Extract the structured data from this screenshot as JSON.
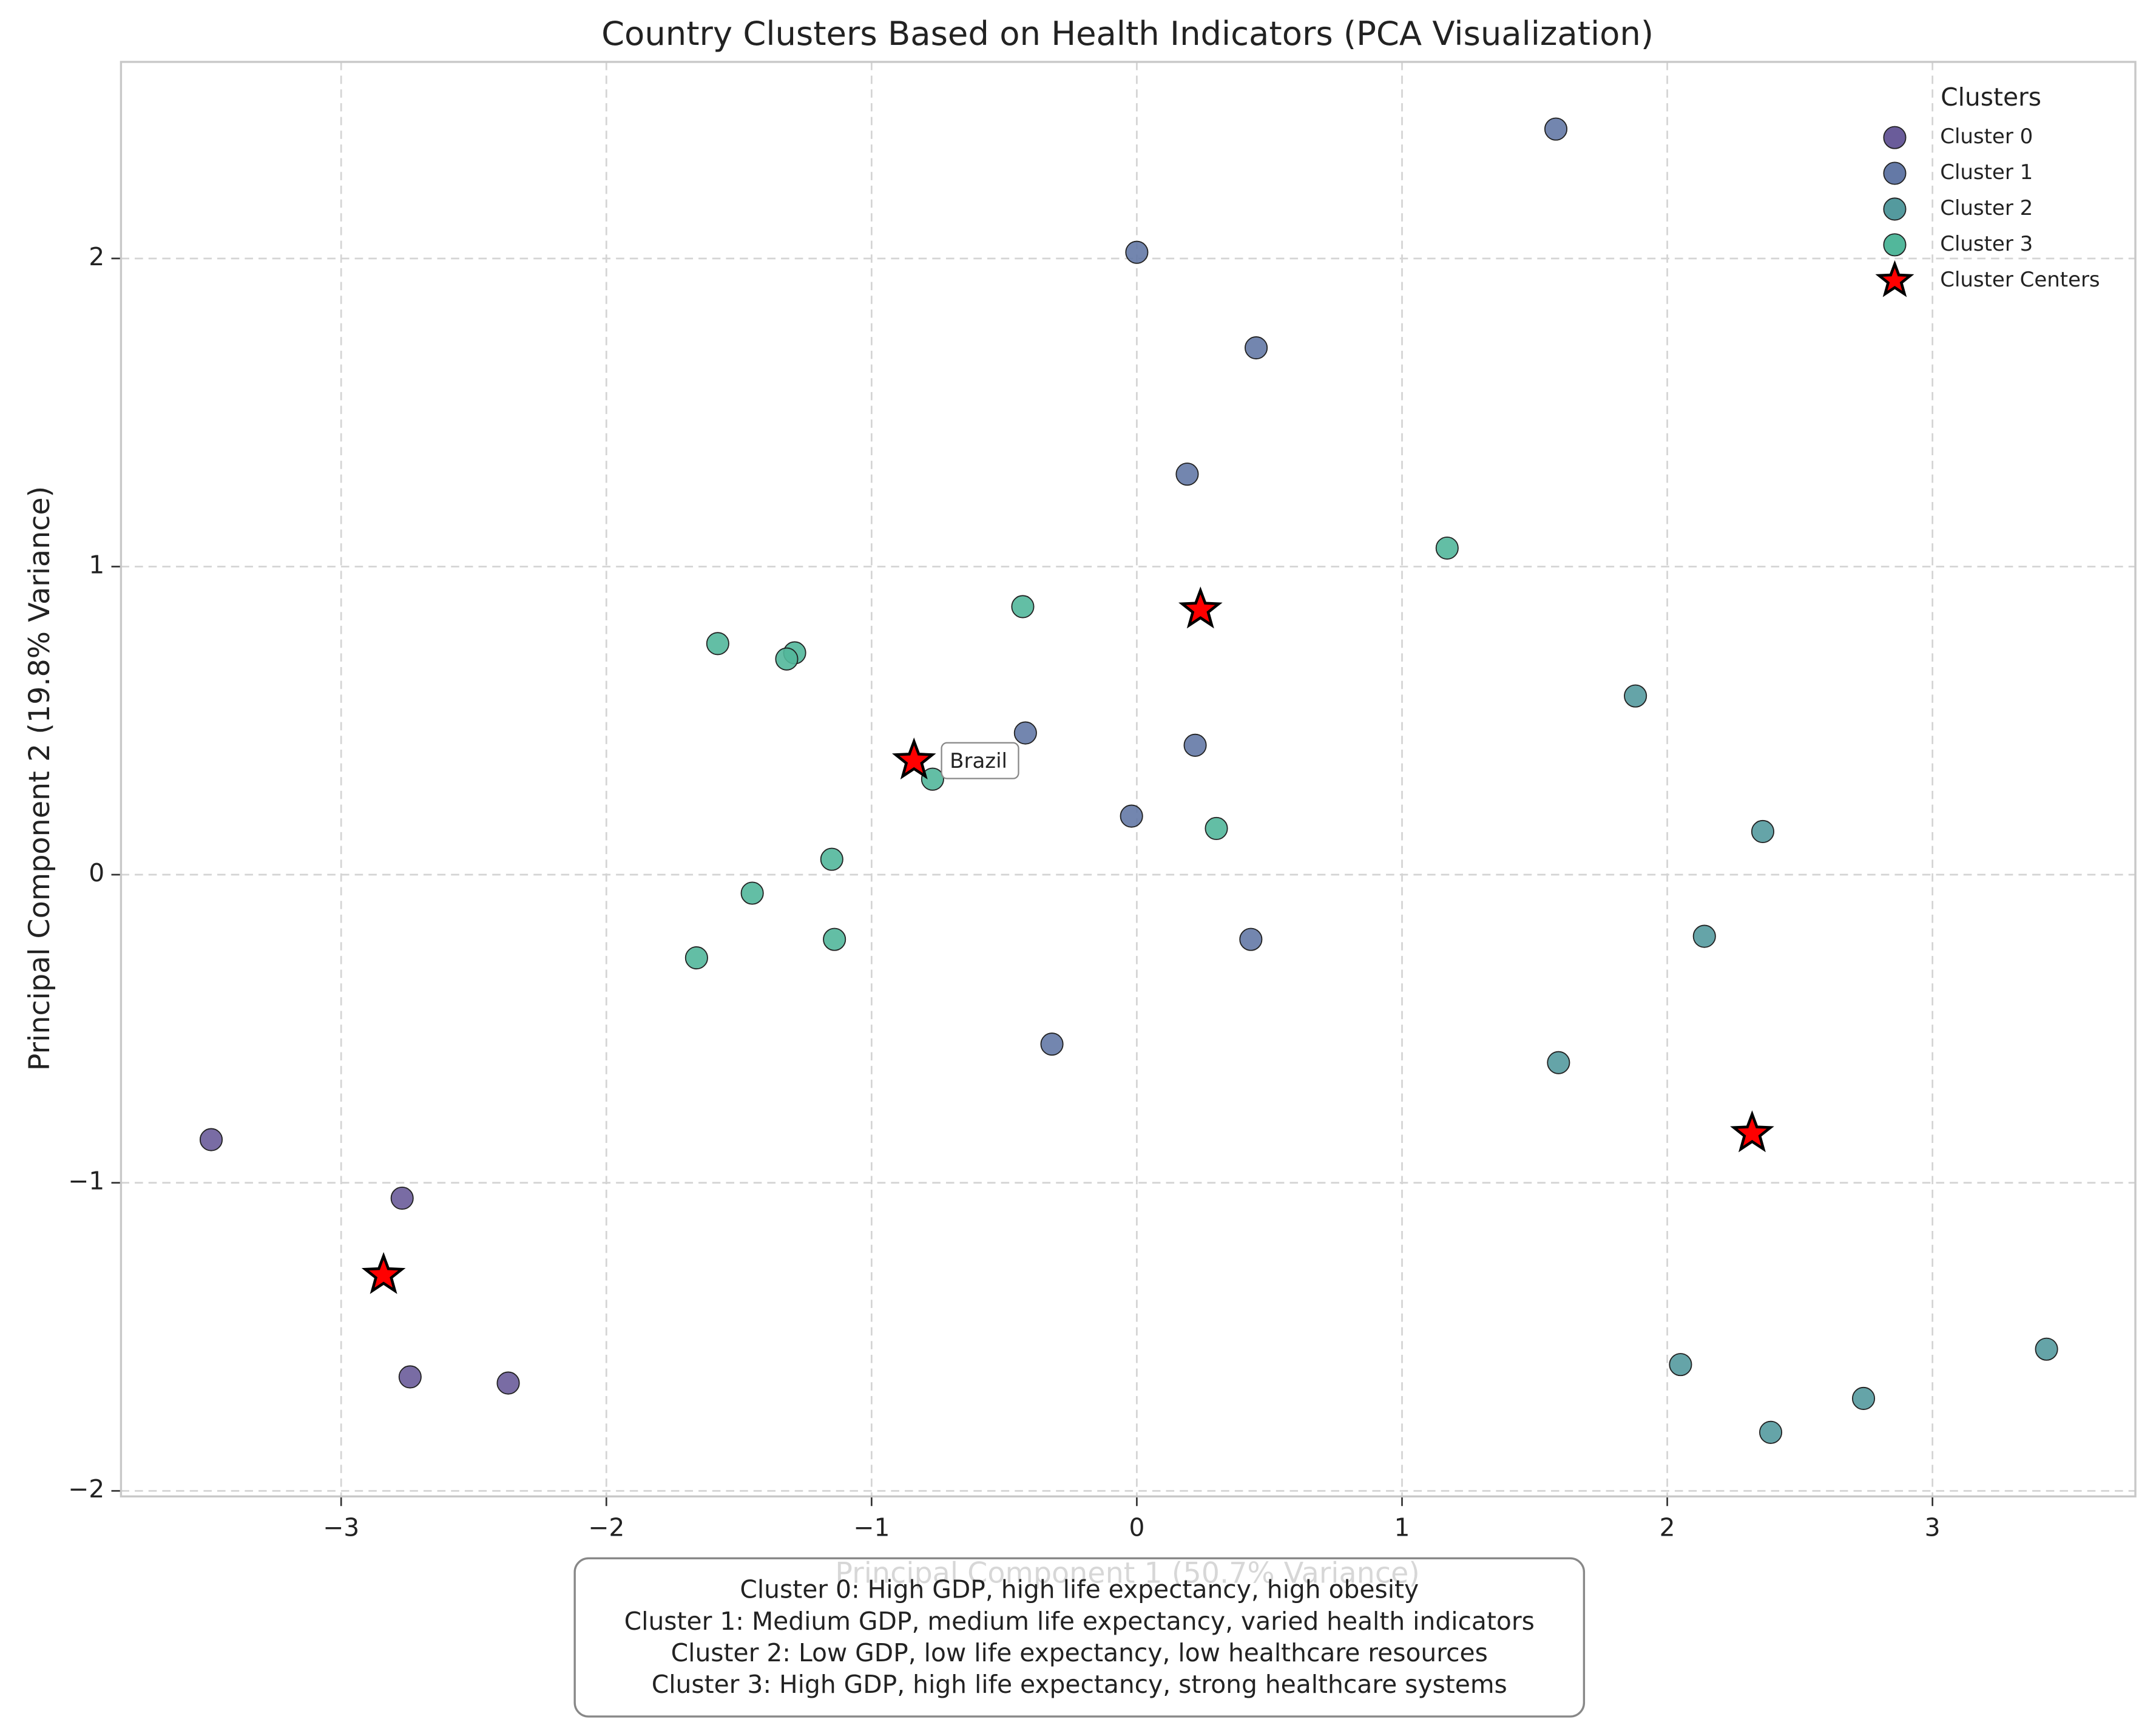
{
  "chart_data": {
    "type": "scatter",
    "title": "Country Clusters Based on Health Indicators (PCA Visualization)",
    "xlabel": "Principal Component 1 (50.7% Variance)",
    "ylabel": "Principal Component 2 (19.8% Variance)",
    "xlim": [
      -3.83,
      3.765
    ],
    "ylim": [
      -2.018,
      2.638
    ],
    "xticks": [
      {
        "value": -3,
        "label": "−3"
      },
      {
        "value": -2,
        "label": "−2"
      },
      {
        "value": -1,
        "label": "−1"
      },
      0,
      1,
      2,
      3
    ],
    "yticks": [
      {
        "value": -2,
        "label": "−2"
      },
      {
        "value": -1,
        "label": "−1"
      },
      0,
      1,
      2
    ],
    "grid": true,
    "legend_title": "Clusters",
    "legend_position": "upper right",
    "series": [
      {
        "name": "Cluster 0",
        "color": "#6a5c9a",
        "marker": "circle",
        "x": [
          -3.49,
          -2.77,
          -2.74,
          -2.37
        ],
        "y": [
          -0.86,
          -1.05,
          -1.63,
          -1.65
        ]
      },
      {
        "name": "Cluster 1",
        "color": "#6479a6",
        "marker": "circle",
        "x": [
          1.58,
          0.0,
          0.45,
          0.19,
          -0.42,
          0.22,
          -0.02,
          0.43,
          -0.32
        ],
        "y": [
          2.42,
          2.02,
          1.71,
          1.3,
          0.46,
          0.42,
          0.19,
          -0.21,
          -0.55
        ]
      },
      {
        "name": "Cluster 2",
        "color": "#549a9e",
        "marker": "circle",
        "x": [
          1.88,
          2.36,
          2.14,
          1.59,
          2.05,
          3.43,
          2.74,
          2.39
        ],
        "y": [
          0.58,
          0.14,
          -0.2,
          -0.61,
          -1.59,
          -1.54,
          -1.7,
          -1.81
        ]
      },
      {
        "name": "Cluster 3",
        "color": "#52b79b",
        "marker": "circle",
        "x": [
          1.17,
          -0.43,
          -1.58,
          -1.29,
          -1.32,
          -0.77,
          0.3,
          -1.15,
          -1.45,
          -1.14,
          -1.66
        ],
        "y": [
          1.06,
          0.87,
          0.75,
          0.72,
          0.7,
          0.31,
          0.15,
          0.05,
          -0.06,
          -0.21,
          -0.27
        ]
      },
      {
        "name": "Cluster Centers",
        "color": "#ff0000",
        "marker": "star",
        "x": [
          0.24,
          -0.84,
          2.32,
          -2.84
        ],
        "y": [
          0.86,
          0.37,
          -0.84,
          -1.3
        ]
      }
    ],
    "annotation": {
      "text": "Brazil",
      "x": -0.84,
      "y": 0.37
    },
    "notes": [
      "Cluster 0: High GDP, high life expectancy, high obesity",
      "Cluster 1: Medium GDP, medium life expectancy, varied health indicators",
      "Cluster 2: Low GDP, low life expectancy, low healthcare resources",
      "Cluster 3: High GDP, high life expectancy, strong healthcare systems"
    ]
  }
}
